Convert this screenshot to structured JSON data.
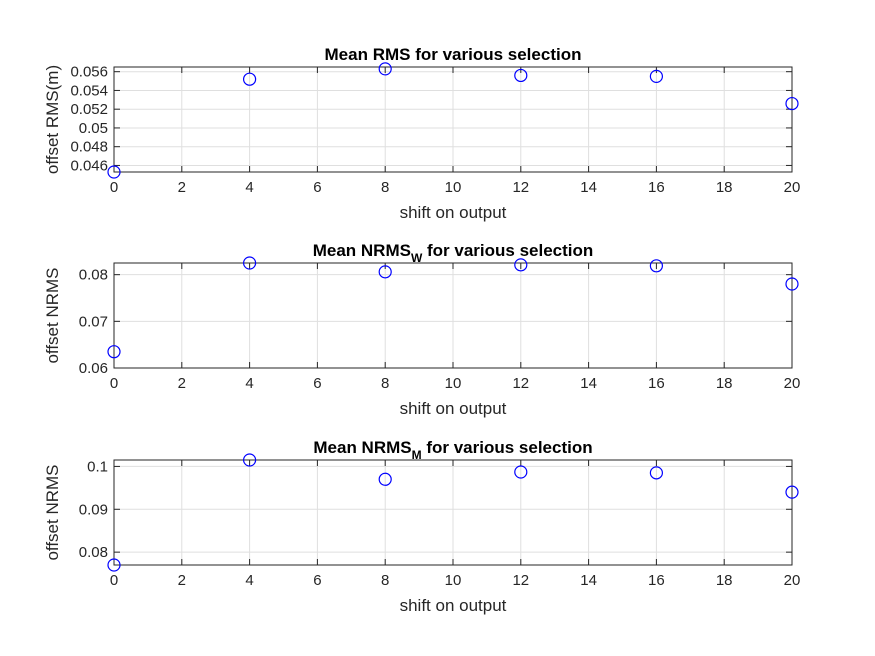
{
  "chart_data": [
    {
      "type": "scatter",
      "title": "Mean RMS for various selection",
      "title_sub": "",
      "title_suffix": "",
      "xlabel": "shift on output",
      "ylabel": "offset RMS(m)",
      "xlim": [
        0,
        20
      ],
      "ylim": [
        0.0453,
        0.0565
      ],
      "xticks": [
        0,
        2,
        4,
        6,
        8,
        10,
        12,
        14,
        16,
        18,
        20
      ],
      "xtick_labels": [
        "0",
        "2",
        "4",
        "6",
        "8",
        "10",
        "12",
        "14",
        "16",
        "18",
        "20"
      ],
      "yticks": [
        0.046,
        0.048,
        0.05,
        0.052,
        0.054,
        0.056
      ],
      "ytick_labels": [
        "0.046",
        "0.048",
        "0.05",
        "0.052",
        "0.054",
        "0.056"
      ],
      "grid": true,
      "marker": "o",
      "color": "#0000ff",
      "x": [
        0,
        4,
        8,
        12,
        16,
        20
      ],
      "y": [
        0.0453,
        0.0552,
        0.0563,
        0.0556,
        0.0555,
        0.0526
      ]
    },
    {
      "type": "scatter",
      "title": "Mean NRMS",
      "title_sub": "W",
      "title_suffix": " for various selection",
      "xlabel": "shift on output",
      "ylabel": "offset NRMS",
      "xlim": [
        0,
        20
      ],
      "ylim": [
        0.06,
        0.0825
      ],
      "xticks": [
        0,
        2,
        4,
        6,
        8,
        10,
        12,
        14,
        16,
        18,
        20
      ],
      "xtick_labels": [
        "0",
        "2",
        "4",
        "6",
        "8",
        "10",
        "12",
        "14",
        "16",
        "18",
        "20"
      ],
      "yticks": [
        0.06,
        0.07,
        0.08
      ],
      "ytick_labels": [
        "0.06",
        "0.07",
        "0.08"
      ],
      "grid": true,
      "marker": "o",
      "color": "#0000ff",
      "x": [
        0,
        4,
        8,
        12,
        16,
        20
      ],
      "y": [
        0.0635,
        0.0825,
        0.0806,
        0.0821,
        0.0819,
        0.078
      ]
    },
    {
      "type": "scatter",
      "title": "Mean NRMS",
      "title_sub": "M",
      "title_suffix": " for various selection",
      "xlabel": "shift on output",
      "ylabel": "offset NRMS",
      "xlim": [
        0,
        20
      ],
      "ylim": [
        0.077,
        0.1015
      ],
      "xticks": [
        0,
        2,
        4,
        6,
        8,
        10,
        12,
        14,
        16,
        18,
        20
      ],
      "xtick_labels": [
        "0",
        "2",
        "4",
        "6",
        "8",
        "10",
        "12",
        "14",
        "16",
        "18",
        "20"
      ],
      "yticks": [
        0.08,
        0.09,
        0.1
      ],
      "ytick_labels": [
        "0.08",
        "0.09",
        "0.1"
      ],
      "grid": true,
      "marker": "o",
      "color": "#0000ff",
      "x": [
        0,
        4,
        8,
        12,
        16,
        20
      ],
      "y": [
        0.077,
        0.1015,
        0.097,
        0.0987,
        0.0985,
        0.094
      ]
    }
  ]
}
